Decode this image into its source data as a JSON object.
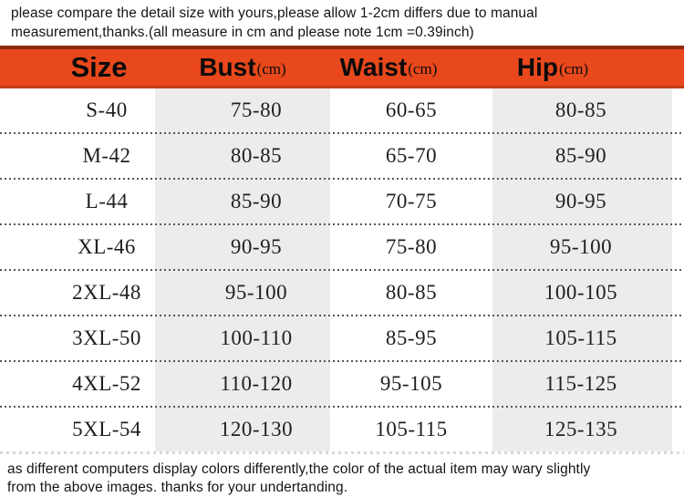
{
  "top_note": {
    "line1": "please compare the detail size with yours,please allow 1-2cm differs due to manual",
    "line2": "measurement,thanks.(all measure in cm and please note 1cm =0.39inch)"
  },
  "chart_data": {
    "type": "table",
    "columns": [
      {
        "label": "Size",
        "unit": ""
      },
      {
        "label": "Bust",
        "unit": "(cm)"
      },
      {
        "label": "Waist",
        "unit": "(cm)"
      },
      {
        "label": "Hip",
        "unit": "(cm)"
      }
    ],
    "unit_note": "all measure in cm",
    "rows": [
      {
        "size": "S-40",
        "bust": "75-80",
        "waist": "60-65",
        "hip": "80-85"
      },
      {
        "size": "M-42",
        "bust": "80-85",
        "waist": "65-70",
        "hip": "85-90"
      },
      {
        "size": "L-44",
        "bust": "85-90",
        "waist": "70-75",
        "hip": "90-95"
      },
      {
        "size": "XL-46",
        "bust": "90-95",
        "waist": "75-80",
        "hip": "95-100"
      },
      {
        "size": "2XL-48",
        "bust": "95-100",
        "waist": "80-85",
        "hip": "100-105"
      },
      {
        "size": "3XL-50",
        "bust": "100-110",
        "waist": "85-95",
        "hip": "105-115"
      },
      {
        "size": "4XL-52",
        "bust": "110-120",
        "waist": "95-105",
        "hip": "115-125"
      },
      {
        "size": "5XL-54",
        "bust": "120-130",
        "waist": "105-115",
        "hip": "125-135"
      }
    ]
  },
  "bottom_note": {
    "line1": "as different computers display colors differently,the color of the actual item may wary slightly",
    "line2": "from the above images. thanks for your undertanding."
  },
  "colors": {
    "header_bg": "#e8481c",
    "header_border_top": "#8c2911",
    "header_border_bottom": "#c23d15",
    "column_stripe": "#ececec",
    "dotted_separator": "#575757",
    "header_text": "#0b0b0b",
    "cell_text": "#1f1f1f"
  }
}
